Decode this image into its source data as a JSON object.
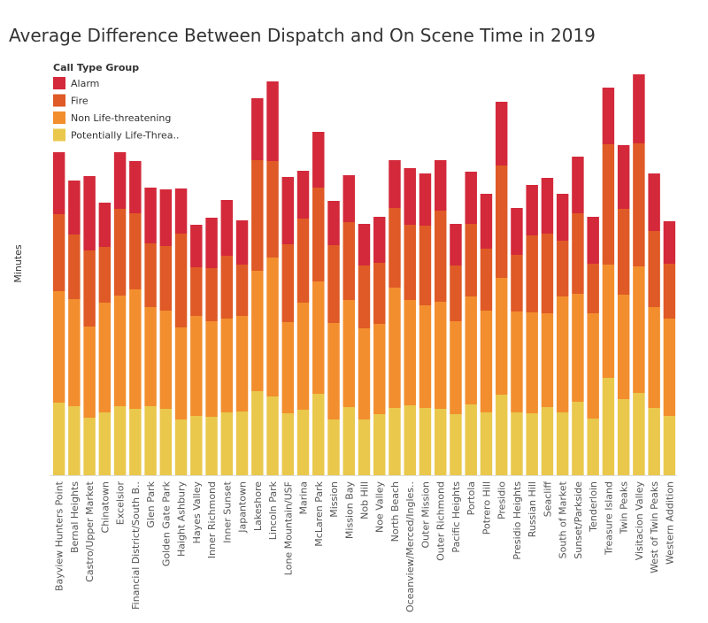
{
  "chart_data": {
    "type": "stacked_bar",
    "title": "Average Difference Between Dispatch and On Scene Time in 2019",
    "y_label": "Minutes",
    "legend_title": "Call Type Group",
    "ylim": [
      0,
      46
    ],
    "categories": [
      "Bayview Hunters Point",
      "Bernal Heights",
      "Castro/Upper Market",
      "Chinatown",
      "Excelsior",
      "Financial District/South B..",
      "Glen Park",
      "Golden Gate Park",
      "Haight Ashbury",
      "Hayes Valley",
      "Inner Richmond",
      "Inner Sunset",
      "Japantown",
      "Lakeshore",
      "Lincoln Park",
      "Lone Mountain/USF",
      "Marina",
      "McLaren Park",
      "Mission",
      "Mission Bay",
      "Nob Hill",
      "Noe Valley",
      "North Beach",
      "Oceanview/Merced/Ingles..",
      "Outer Mission",
      "Outer Richmond",
      "Pacific Heights",
      "Portola",
      "Potrero Hill",
      "Presidio",
      "Presidio Heights",
      "Russian Hill",
      "Seacliff",
      "South of Market",
      "Sunset/Parkside",
      "Tenderloin",
      "Treasure Island",
      "Twin Peaks",
      "Visitacion Valley",
      "West of Twin Peaks",
      "Western Addition"
    ],
    "series": [
      {
        "name": "Alarm",
        "color": "#d3293a",
        "values": [
          7.0,
          6.1,
          8.4,
          5.0,
          6.4,
          5.9,
          6.3,
          6.4,
          5.1,
          4.8,
          5.7,
          6.3,
          5.0,
          7.0,
          9.0,
          7.6,
          5.4,
          6.3,
          5.0,
          5.3,
          4.7,
          5.2,
          5.4,
          6.4,
          5.9,
          5.7,
          4.7,
          5.9,
          6.2,
          7.2,
          5.3,
          5.7,
          6.3,
          5.3,
          6.4,
          5.3,
          6.4,
          7.2,
          7.8,
          6.5,
          4.8
        ]
      },
      {
        "name": "Fire",
        "color": "#df5a26",
        "values": [
          8.7,
          7.3,
          8.6,
          6.3,
          9.8,
          8.6,
          7.2,
          7.3,
          10.6,
          5.5,
          6.0,
          7.1,
          5.8,
          12.5,
          10.9,
          8.8,
          9.5,
          10.6,
          8.8,
          8.8,
          7.1,
          6.9,
          9.0,
          8.5,
          9.0,
          10.3,
          6.3,
          8.2,
          7.0,
          12.7,
          6.4,
          8.7,
          9.0,
          6.3,
          9.1,
          5.6,
          13.6,
          9.7,
          13.9,
          8.6,
          6.2
        ]
      },
      {
        "name": "Non Life-threatening",
        "color": "#f28e2e",
        "values": [
          12.6,
          12.1,
          10.3,
          12.4,
          12.5,
          13.5,
          11.2,
          11.1,
          10.4,
          11.3,
          10.8,
          10.6,
          10.8,
          13.6,
          15.7,
          10.3,
          12.1,
          12.7,
          10.9,
          12.1,
          10.3,
          10.2,
          13.6,
          11.9,
          11.6,
          12.1,
          10.5,
          12.2,
          11.5,
          13.2,
          11.4,
          11.4,
          10.6,
          13.1,
          12.2,
          11.9,
          12.8,
          11.8,
          14.3,
          11.4,
          11.0
        ]
      },
      {
        "name": "Potentially Life-Threa..",
        "color": "#e9c84c",
        "values": [
          8.2,
          7.8,
          6.5,
          7.1,
          7.8,
          7.5,
          7.8,
          7.5,
          6.3,
          6.7,
          6.6,
          7.1,
          7.2,
          9.5,
          8.9,
          7.0,
          7.4,
          9.2,
          6.3,
          7.7,
          6.3,
          6.9,
          7.6,
          7.9,
          7.6,
          7.5,
          6.9,
          8.0,
          7.1,
          9.1,
          7.1,
          7.0,
          7.7,
          7.1,
          8.3,
          6.4,
          11.0,
          8.6,
          9.3,
          7.6,
          6.7
        ]
      }
    ]
  }
}
